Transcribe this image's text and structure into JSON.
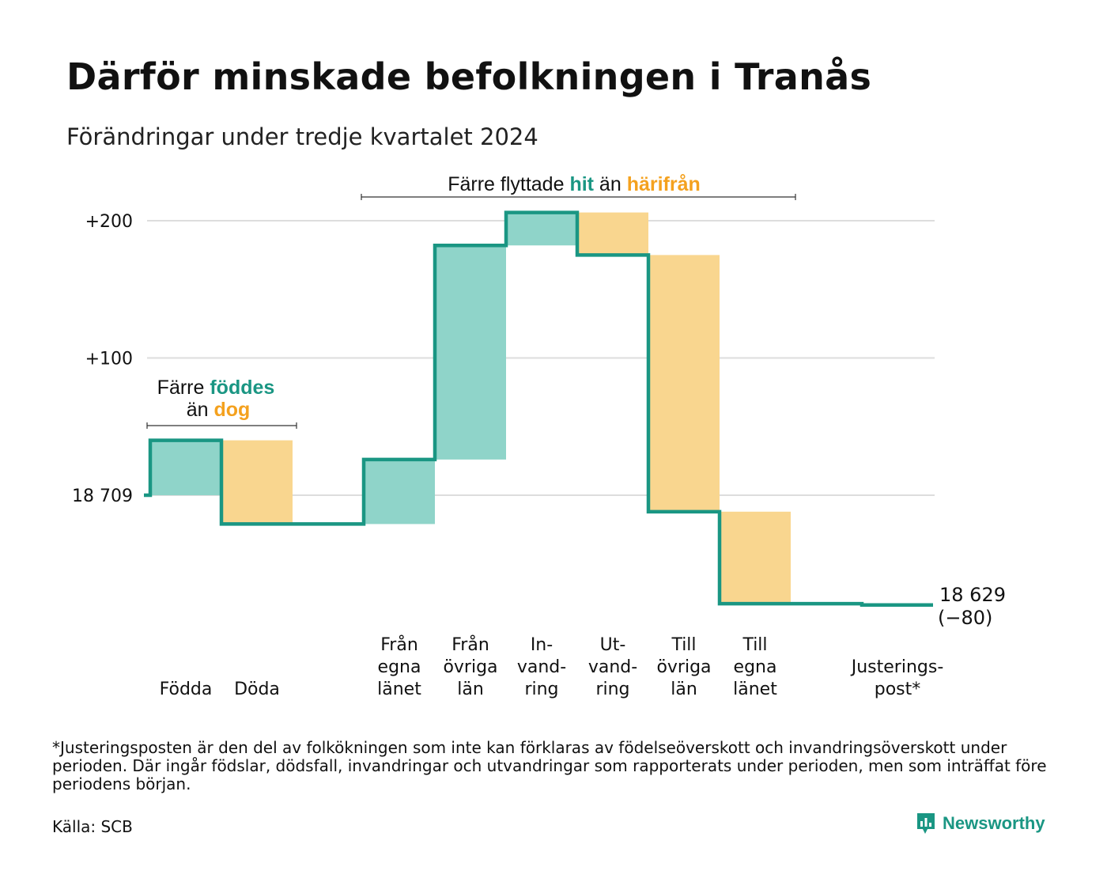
{
  "title": "Därför minskade befolkningen i Tranås",
  "subtitle": "Förändringar under tredje kvartalet 2024",
  "colors": {
    "teal": "#1a9683",
    "teal_fill": "#8fd4c9",
    "orange": "#f4a11e",
    "orange_fill": "#f9d68f",
    "grid": "#dddddd"
  },
  "annotations": {
    "births": {
      "part1": "Färre",
      "hl1": "föddes",
      "part2": "än",
      "hl2": "dog"
    },
    "moves": {
      "part1": "Färre flyttade",
      "hl1": "hit",
      "part2": "än",
      "hl2": "härifrån"
    }
  },
  "end_label": {
    "value": "18 629",
    "change": "(−80)"
  },
  "footnote": "*Justeringsposten är den del av folkökningen som inte kan förklaras av födelseöverskott och invandringsöverskott under perioden. Där ingår födslar, dödsfall, invandringar och utvandringar som rapporterats under perioden, men som inträffat före periodens början.",
  "source": "Källa: SCB",
  "brand": "Newsworthy",
  "chart_data": {
    "type": "waterfall",
    "start_value": 18709,
    "end_value": 18629,
    "net_change": -80,
    "y_ticks": [
      {
        "value": 0,
        "label": "18 709"
      },
      {
        "value": 100,
        "label": "+100"
      },
      {
        "value": 200,
        "label": "+200"
      }
    ],
    "ylim": [
      -90,
      210
    ],
    "steps": [
      {
        "label": [
          "Födda"
        ],
        "change": 40,
        "kind": "in"
      },
      {
        "label": [
          "Döda"
        ],
        "change": -61,
        "kind": "out"
      },
      {
        "label": [
          ""
        ],
        "change": 0,
        "kind": "none"
      },
      {
        "label": [
          "Från",
          "egna",
          "länet"
        ],
        "change": 47,
        "kind": "in"
      },
      {
        "label": [
          "Från",
          "övriga",
          "län"
        ],
        "change": 156,
        "kind": "in"
      },
      {
        "label": [
          "In-",
          "vand-",
          "ring"
        ],
        "change": 24,
        "kind": "in"
      },
      {
        "label": [
          "Ut-",
          "vand-",
          "ring"
        ],
        "change": -31,
        "kind": "out"
      },
      {
        "label": [
          "Till",
          "övriga",
          "län"
        ],
        "change": -187,
        "kind": "out"
      },
      {
        "label": [
          "Till",
          "egna",
          "länet"
        ],
        "change": -67,
        "kind": "out"
      },
      {
        "label": [
          ""
        ],
        "change": 0,
        "kind": "none"
      },
      {
        "label": [
          "Justerings-",
          "post*"
        ],
        "change": -1,
        "kind": "adjust"
      }
    ]
  }
}
